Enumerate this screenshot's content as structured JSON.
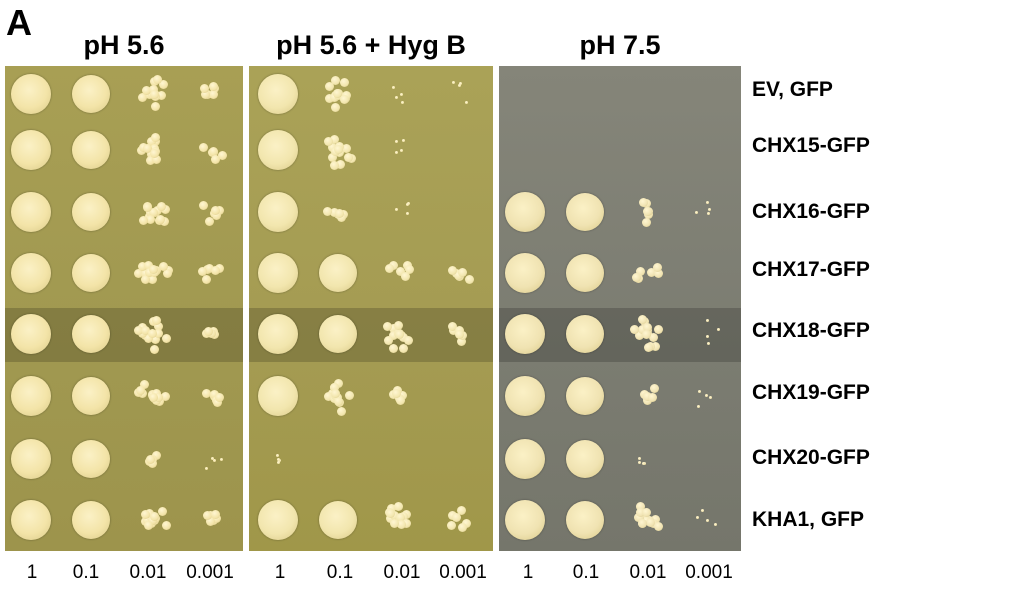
{
  "panel_letter": "A",
  "conditions": [
    "pH 5.6",
    "pH 5.6 + Hyg B",
    "pH 7.5"
  ],
  "dilutions": [
    "1",
    "0.1",
    "0.01",
    "0.001"
  ],
  "strains": [
    "EV, GFP",
    "CHX15-GFP",
    "CHX16-GFP",
    "CHX17-GFP",
    "CHX18-GFP",
    "CHX19-GFP",
    "CHX20-GFP",
    "KHA1, GFP"
  ],
  "colors": {
    "plate_yellow": "#a39a4e",
    "plate_gray": "#7e7f73",
    "colony": "#f1e3a6"
  }
}
